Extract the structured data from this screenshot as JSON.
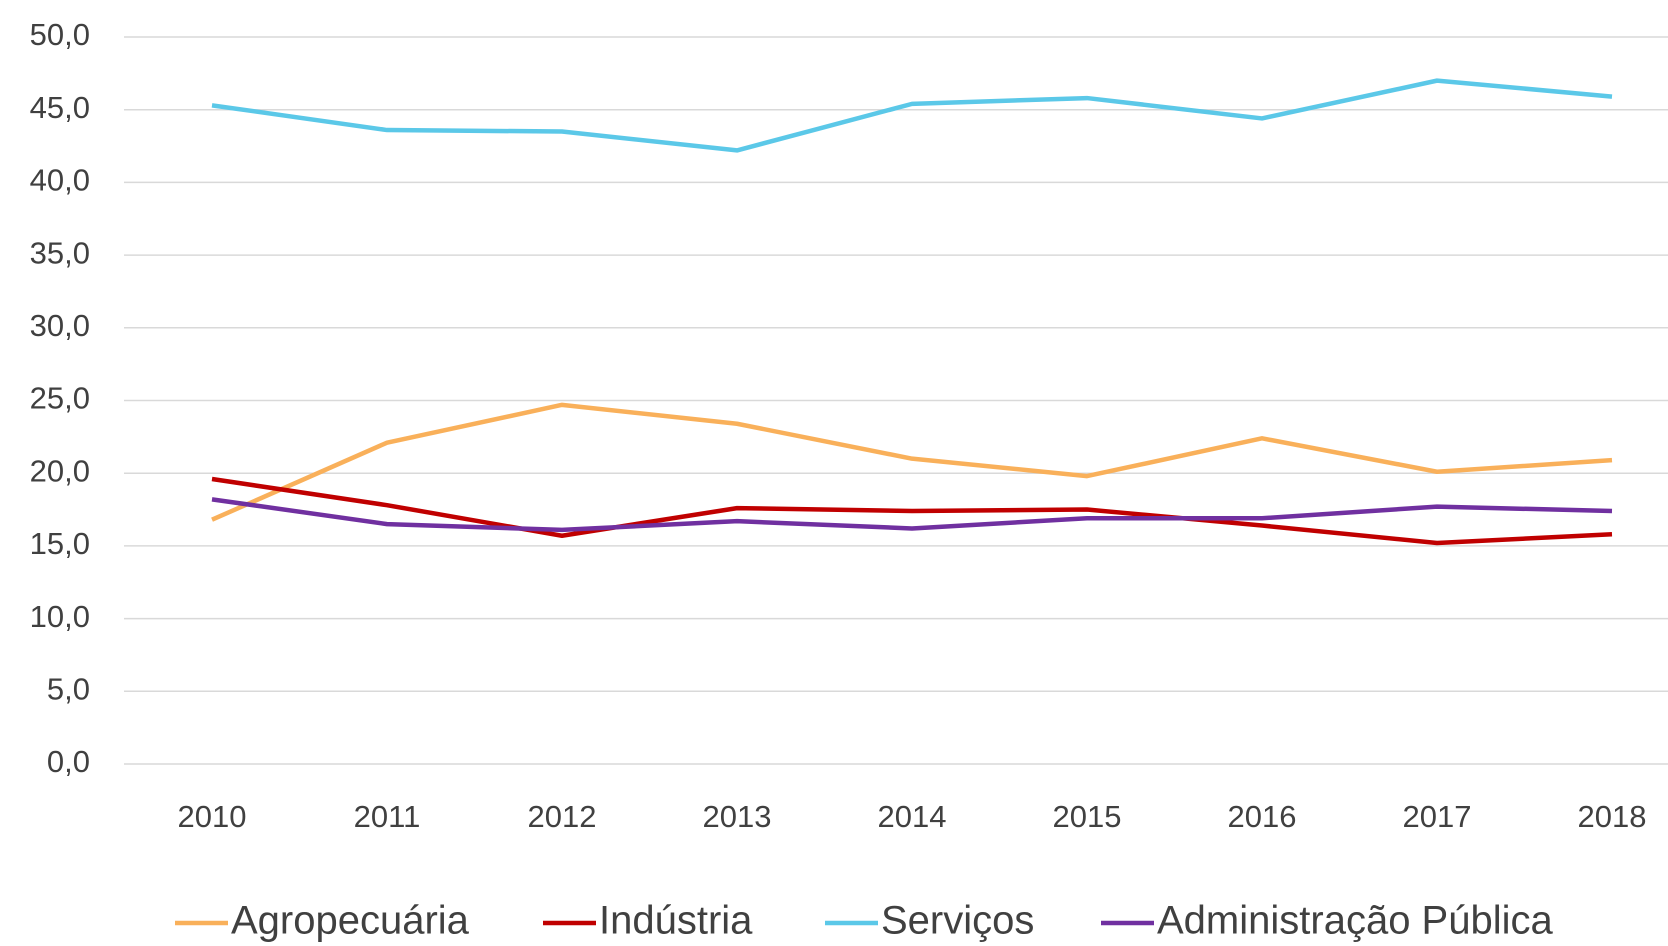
{
  "chart_data": {
    "type": "line",
    "categories": [
      "2010",
      "2011",
      "2012",
      "2013",
      "2014",
      "2015",
      "2016",
      "2017",
      "2018"
    ],
    "series": [
      {
        "name": "Agropecuária",
        "color": "#f9b05a",
        "values": [
          16.8,
          22.1,
          24.7,
          23.4,
          21.0,
          19.8,
          22.4,
          20.1,
          20.9
        ]
      },
      {
        "name": "Indústria",
        "color": "#c00000",
        "values": [
          19.6,
          17.8,
          15.7,
          17.6,
          17.4,
          17.5,
          16.4,
          15.2,
          15.8
        ]
      },
      {
        "name": "Serviços",
        "color": "#5bc8e8",
        "values": [
          45.3,
          43.6,
          43.5,
          42.2,
          45.4,
          45.8,
          44.4,
          47.0,
          45.9
        ]
      },
      {
        "name": "Administração Pública",
        "color": "#7030a0",
        "values": [
          18.2,
          16.5,
          16.1,
          16.7,
          16.2,
          16.9,
          16.9,
          17.7,
          17.4
        ]
      }
    ],
    "ylim": [
      0,
      50
    ],
    "yticks": [
      {
        "value": 0,
        "label": "0,0"
      },
      {
        "value": 5,
        "label": "5,0"
      },
      {
        "value": 10,
        "label": "10,0"
      },
      {
        "value": 15,
        "label": "15,0"
      },
      {
        "value": 20,
        "label": "20,0"
      },
      {
        "value": 25,
        "label": "25,0"
      },
      {
        "value": 30,
        "label": "30,0"
      },
      {
        "value": 35,
        "label": "35,0"
      },
      {
        "value": 40,
        "label": "40,0"
      },
      {
        "value": 45,
        "label": "45,0"
      },
      {
        "value": 50,
        "label": "50,0"
      }
    ],
    "grid": true,
    "legend": "bottom"
  }
}
